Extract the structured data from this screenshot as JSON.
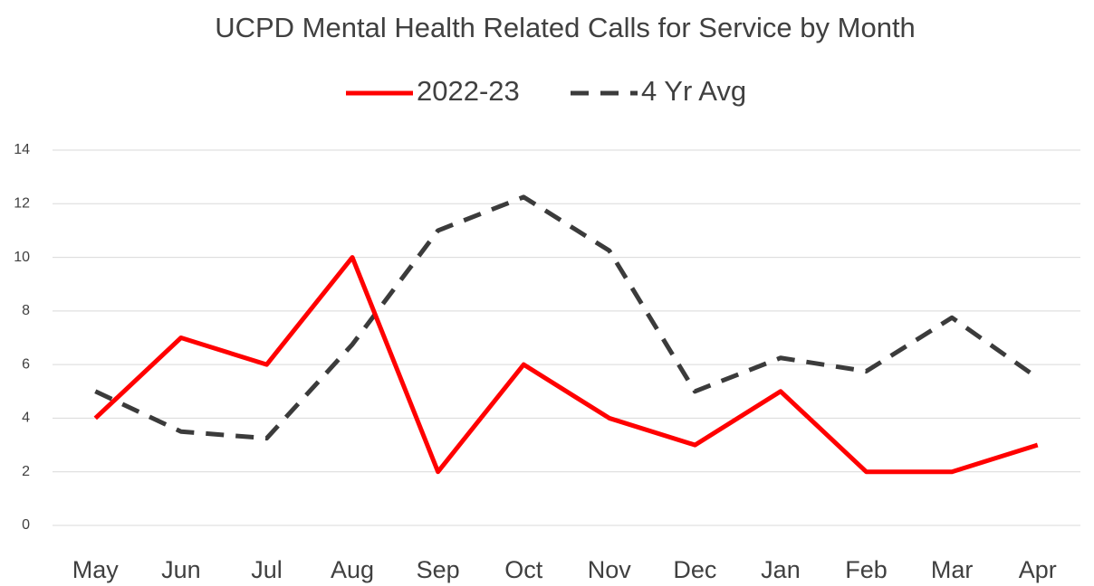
{
  "chart_data": {
    "type": "line",
    "title": "UCPD Mental Health Related Calls for Service by Month",
    "categories": [
      "May",
      "Jun",
      "Jul",
      "Aug",
      "Sep",
      "Oct",
      "Nov",
      "Dec",
      "Jan",
      "Feb",
      "Mar",
      "Apr"
    ],
    "series": [
      {
        "name": "2022-23",
        "color": "#ff0000",
        "dashed": false,
        "values": [
          4,
          7,
          6,
          10,
          2,
          6,
          4,
          3,
          5,
          2,
          2,
          3
        ]
      },
      {
        "name": "4 Yr Avg",
        "color": "#3b3b3b",
        "dashed": true,
        "values": [
          5,
          3.5,
          3.25,
          6.75,
          11,
          12.25,
          10.25,
          5,
          6.25,
          5.75,
          7.75,
          5.5
        ]
      }
    ],
    "ylim": [
      0,
      14
    ],
    "yticks": [
      0,
      2,
      4,
      6,
      8,
      10,
      12,
      14
    ],
    "grid": true,
    "legend": "top"
  }
}
